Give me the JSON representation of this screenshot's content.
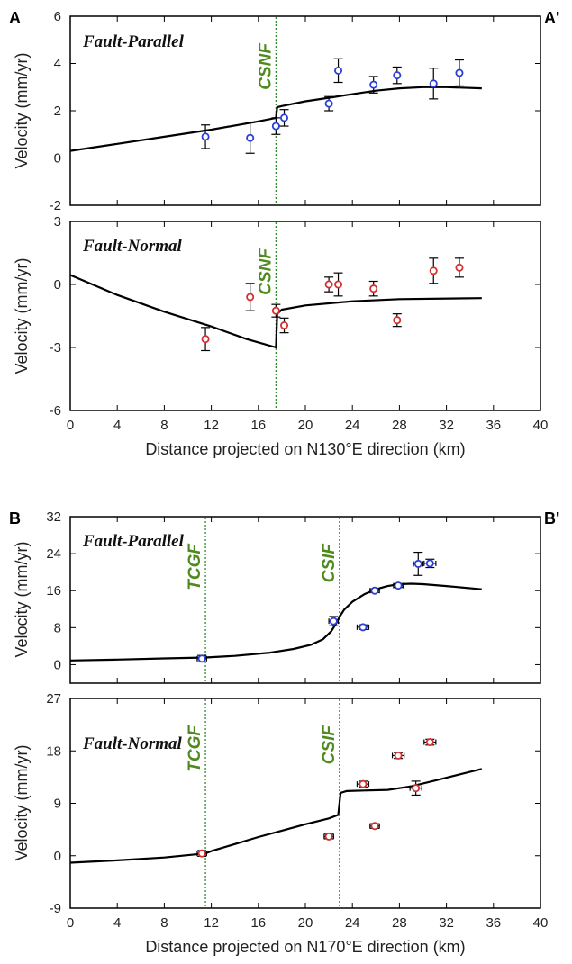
{
  "colors": {
    "corner": "#2f6b12",
    "fault": "#2e8b2e",
    "fault_text": "#4f8a1e",
    "parallel_marker": "#2b3fd6",
    "normal_marker": "#d43030",
    "model_line": "#000000"
  },
  "chart_data": [
    {
      "type": "scatter",
      "panel": "A-top",
      "title": "Fault-Parallel",
      "xlabel": "",
      "ylabel": "Velocity (mm/yr)",
      "xlim": [
        0,
        40
      ],
      "ylim": [
        -2,
        6
      ],
      "xticks": [
        "0",
        "4",
        "8",
        "12",
        "16",
        "20",
        "24",
        "28",
        "32",
        "36",
        "40"
      ],
      "yticks": [
        "-2",
        "0",
        "2",
        "4",
        "6"
      ],
      "xtick_labels_shown": false,
      "corner_left": "A",
      "corner_right": "A'",
      "faults": [
        {
          "name": "CSNF",
          "x": 17.5
        }
      ],
      "marker": "parallel",
      "points": [
        {
          "x": 11.5,
          "y": 0.9,
          "err": 0.5
        },
        {
          "x": 15.3,
          "y": 0.85,
          "err": 0.65
        },
        {
          "x": 17.5,
          "y": 1.35,
          "err": 0.35
        },
        {
          "x": 18.2,
          "y": 1.7,
          "err": 0.35
        },
        {
          "x": 22.0,
          "y": 2.3,
          "err": 0.3
        },
        {
          "x": 22.8,
          "y": 3.7,
          "err": 0.5
        },
        {
          "x": 25.8,
          "y": 3.1,
          "err": 0.35
        },
        {
          "x": 27.8,
          "y": 3.5,
          "err": 0.35
        },
        {
          "x": 30.9,
          "y": 3.15,
          "err": 0.65
        },
        {
          "x": 33.1,
          "y": 3.6,
          "err": 0.55
        }
      ],
      "model": [
        [
          0,
          0.3
        ],
        [
          4,
          0.6
        ],
        [
          8,
          0.9
        ],
        [
          12,
          1.2
        ],
        [
          16,
          1.55
        ],
        [
          17.5,
          1.7
        ],
        [
          17.6,
          2.15
        ],
        [
          18,
          2.2
        ],
        [
          20,
          2.4
        ],
        [
          22,
          2.55
        ],
        [
          24,
          2.7
        ],
        [
          26,
          2.85
        ],
        [
          28,
          2.95
        ],
        [
          30,
          3.0
        ],
        [
          32,
          3.0
        ],
        [
          35,
          2.95
        ]
      ]
    },
    {
      "type": "scatter",
      "panel": "A-bottom",
      "title": "Fault-Normal",
      "xlabel": "Distance projected on N130°E direction (km)",
      "ylabel": "Velocity (mm/yr)",
      "xlim": [
        0,
        40
      ],
      "ylim": [
        -6,
        3
      ],
      "xticks": [
        "0",
        "4",
        "8",
        "12",
        "16",
        "20",
        "24",
        "28",
        "32",
        "36",
        "40"
      ],
      "yticks": [
        "-6",
        "-3",
        "0",
        "3"
      ],
      "xtick_labels_shown": true,
      "faults": [
        {
          "name": "CSNF",
          "x": 17.5
        }
      ],
      "marker": "normal",
      "points": [
        {
          "x": 11.5,
          "y": -2.6,
          "err": 0.55
        },
        {
          "x": 15.3,
          "y": -0.6,
          "err": 0.65
        },
        {
          "x": 17.5,
          "y": -1.25,
          "err": 0.3
        },
        {
          "x": 18.2,
          "y": -1.95,
          "err": 0.35
        },
        {
          "x": 22.0,
          "y": 0.0,
          "err": 0.35
        },
        {
          "x": 22.8,
          "y": 0.0,
          "err": 0.55
        },
        {
          "x": 25.8,
          "y": -0.2,
          "err": 0.35
        },
        {
          "x": 27.8,
          "y": -1.7,
          "err": 0.3
        },
        {
          "x": 30.9,
          "y": 0.65,
          "err": 0.6
        },
        {
          "x": 33.1,
          "y": 0.8,
          "err": 0.45
        }
      ],
      "model": [
        [
          0,
          0.45
        ],
        [
          4,
          -0.5
        ],
        [
          8,
          -1.3
        ],
        [
          12,
          -2.0
        ],
        [
          15,
          -2.6
        ],
        [
          17.5,
          -3.0
        ],
        [
          17.6,
          -1.4
        ],
        [
          18,
          -1.2
        ],
        [
          20,
          -1.0
        ],
        [
          24,
          -0.8
        ],
        [
          28,
          -0.7
        ],
        [
          35,
          -0.65
        ]
      ]
    },
    {
      "type": "scatter",
      "panel": "B-top",
      "title": "Fault-Parallel",
      "xlabel": "",
      "ylabel": "Velocity (mm/yr)",
      "xlim": [
        0,
        40
      ],
      "ylim": [
        -4,
        32
      ],
      "xticks": [
        "0",
        "4",
        "8",
        "12",
        "16",
        "20",
        "24",
        "28",
        "32",
        "36",
        "40"
      ],
      "yticks": [
        "0",
        "8",
        "16",
        "24",
        "32"
      ],
      "xtick_labels_shown": false,
      "corner_left": "B",
      "corner_right": "B'",
      "faults": [
        {
          "name": "TCGF",
          "x": 11.5
        },
        {
          "name": "CSIF",
          "x": 22.9
        }
      ],
      "marker": "parallel",
      "points": [
        {
          "x": 11.2,
          "y": 1.3,
          "err": 0.7,
          "xerr": 0.4
        },
        {
          "x": 22.4,
          "y": 9.4,
          "err": 1.0,
          "xerr": 0.4
        },
        {
          "x": 24.9,
          "y": 8.1,
          "err": 0.5,
          "xerr": 0.5
        },
        {
          "x": 25.9,
          "y": 16.0,
          "err": 0.4,
          "xerr": 0.4
        },
        {
          "x": 27.9,
          "y": 17.1,
          "err": 0.4,
          "xerr": 0.4
        },
        {
          "x": 29.6,
          "y": 21.8,
          "err": 2.5,
          "xerr": 0.4
        },
        {
          "x": 30.6,
          "y": 21.9,
          "err": 0.9,
          "xerr": 0.5
        }
      ],
      "model": [
        [
          0,
          0.9
        ],
        [
          4,
          1.1
        ],
        [
          8,
          1.35
        ],
        [
          11.5,
          1.55
        ],
        [
          14,
          1.9
        ],
        [
          17,
          2.6
        ],
        [
          19,
          3.4
        ],
        [
          20.5,
          4.3
        ],
        [
          21.5,
          5.5
        ],
        [
          22.2,
          7.2
        ],
        [
          22.6,
          8.8
        ],
        [
          22.9,
          10.3
        ],
        [
          23.3,
          11.9
        ],
        [
          24,
          13.6
        ],
        [
          25,
          15.2
        ],
        [
          26,
          16.3
        ],
        [
          27,
          17.0
        ],
        [
          28,
          17.4
        ],
        [
          29,
          17.5
        ],
        [
          30,
          17.4
        ],
        [
          32,
          17.0
        ],
        [
          35,
          16.3
        ]
      ]
    },
    {
      "type": "scatter",
      "panel": "B-bottom",
      "title": "Fault-Normal",
      "xlabel": "Distance projected on N170°E direction (km)",
      "ylabel": "Velocity (mm/yr)",
      "xlim": [
        0,
        40
      ],
      "ylim": [
        -9,
        27
      ],
      "xticks": [
        "0",
        "4",
        "8",
        "12",
        "16",
        "20",
        "24",
        "28",
        "32",
        "36",
        "40"
      ],
      "yticks": [
        "-9",
        "0",
        "9",
        "18",
        "27"
      ],
      "xtick_labels_shown": true,
      "faults": [
        {
          "name": "TCGF",
          "x": 11.5
        },
        {
          "name": "CSIF",
          "x": 22.9
        }
      ],
      "marker": "normal",
      "points": [
        {
          "x": 11.2,
          "y": 0.4,
          "err": 0.5,
          "xerr": 0.4
        },
        {
          "x": 22.0,
          "y": 3.3,
          "err": 0.4,
          "xerr": 0.4
        },
        {
          "x": 24.9,
          "y": 12.3,
          "err": 0.5,
          "xerr": 0.5
        },
        {
          "x": 25.9,
          "y": 5.1,
          "err": 0.4,
          "xerr": 0.4
        },
        {
          "x": 27.9,
          "y": 17.2,
          "err": 0.5,
          "xerr": 0.5
        },
        {
          "x": 29.4,
          "y": 11.6,
          "err": 1.2,
          "xerr": 0.5
        },
        {
          "x": 30.6,
          "y": 19.5,
          "err": 0.5,
          "xerr": 0.5
        }
      ],
      "model": [
        [
          0,
          -1.2
        ],
        [
          4,
          -0.8
        ],
        [
          8,
          -0.3
        ],
        [
          11,
          0.3
        ],
        [
          11.5,
          0.4
        ],
        [
          12,
          0.8
        ],
        [
          14,
          2.0
        ],
        [
          16,
          3.2
        ],
        [
          18,
          4.3
        ],
        [
          20,
          5.4
        ],
        [
          22,
          6.4
        ],
        [
          22.8,
          7.0
        ],
        [
          23,
          10.8
        ],
        [
          23.5,
          11.1
        ],
        [
          25,
          11.2
        ],
        [
          27,
          11.3
        ],
        [
          29,
          11.9
        ],
        [
          31,
          12.9
        ],
        [
          33,
          13.9
        ],
        [
          35,
          14.9
        ]
      ]
    }
  ]
}
